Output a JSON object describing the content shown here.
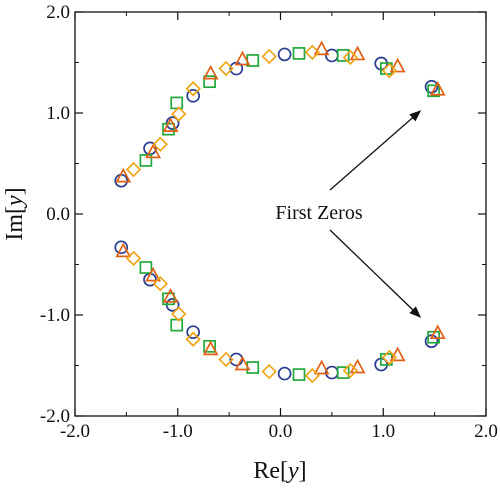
{
  "chart_data": {
    "type": "scatter",
    "xlim": [
      -2.0,
      2.0
    ],
    "ylim": [
      -2.0,
      2.0
    ],
    "grid": false,
    "x_ticks": [
      -2.0,
      -1.0,
      0.0,
      1.0,
      2.0
    ],
    "y_ticks": [
      -2.0,
      -1.0,
      0.0,
      1.0,
      2.0
    ],
    "x_tick_labels": [
      "-2.0",
      "-1.0",
      "0.0",
      "1.0",
      "2.0"
    ],
    "y_tick_labels": [
      "-2.0",
      "-1.0",
      "0.0",
      "1.0",
      "2.0"
    ],
    "xlabel": {
      "base": "Re[",
      "var": "y",
      "close": "]"
    },
    "ylabel": {
      "base": "Im[",
      "var": "y",
      "close": "]"
    },
    "annotation": {
      "text": "First Zeros",
      "anchor": [
        0.5,
        0.0
      ],
      "arrow_targets": [
        [
          1.36,
          1.02
        ],
        [
          1.36,
          -1.02
        ]
      ]
    },
    "series": [
      {
        "marker": "circle",
        "color": "#2b3d8f",
        "points": [
          [
            -1.55,
            0.33
          ],
          [
            -1.27,
            0.65
          ],
          [
            -1.05,
            0.9
          ],
          [
            -0.85,
            1.17
          ],
          [
            -0.43,
            1.44
          ],
          [
            0.04,
            1.58
          ],
          [
            0.5,
            1.57
          ],
          [
            0.98,
            1.49
          ],
          [
            1.47,
            1.26
          ],
          [
            -1.55,
            -0.33
          ],
          [
            -1.27,
            -0.65
          ],
          [
            -1.05,
            -0.9
          ],
          [
            -0.85,
            -1.17
          ],
          [
            -0.43,
            -1.44
          ],
          [
            0.04,
            -1.58
          ],
          [
            0.5,
            -1.57
          ],
          [
            0.98,
            -1.49
          ],
          [
            1.47,
            -1.26
          ]
        ]
      },
      {
        "marker": "square",
        "color": "#22a83a",
        "points": [
          [
            -1.31,
            0.53
          ],
          [
            -1.09,
            0.84
          ],
          [
            -1.01,
            1.1
          ],
          [
            -0.69,
            1.31
          ],
          [
            -0.27,
            1.52
          ],
          [
            0.18,
            1.59
          ],
          [
            0.61,
            1.57
          ],
          [
            1.03,
            1.44
          ],
          [
            1.49,
            1.22
          ],
          [
            -1.31,
            -0.53
          ],
          [
            -1.09,
            -0.84
          ],
          [
            -1.01,
            -1.1
          ],
          [
            -0.69,
            -1.31
          ],
          [
            -0.27,
            -1.52
          ],
          [
            0.18,
            -1.59
          ],
          [
            0.61,
            -1.57
          ],
          [
            1.03,
            -1.44
          ],
          [
            1.49,
            -1.22
          ]
        ]
      },
      {
        "marker": "triangle",
        "color": "#e06014",
        "points": [
          [
            -1.53,
            0.37
          ],
          [
            -1.24,
            0.61
          ],
          [
            -1.07,
            0.87
          ],
          [
            -0.68,
            1.39
          ],
          [
            -0.37,
            1.53
          ],
          [
            0.4,
            1.63
          ],
          [
            0.75,
            1.58
          ],
          [
            1.14,
            1.46
          ],
          [
            1.53,
            1.23
          ],
          [
            -1.53,
            -0.37
          ],
          [
            -1.24,
            -0.61
          ],
          [
            -1.07,
            -0.82
          ],
          [
            -0.68,
            -1.34
          ],
          [
            -0.37,
            -1.49
          ],
          [
            0.4,
            -1.53
          ],
          [
            0.75,
            -1.52
          ],
          [
            1.14,
            -1.4
          ],
          [
            1.53,
            -1.18
          ]
        ]
      },
      {
        "marker": "diamond",
        "color": "#f0a418",
        "points": [
          [
            -1.43,
            0.44
          ],
          [
            -1.17,
            0.69
          ],
          [
            -0.99,
            0.99
          ],
          [
            -0.85,
            1.24
          ],
          [
            -0.53,
            1.44
          ],
          [
            -0.11,
            1.56
          ],
          [
            0.31,
            1.6
          ],
          [
            0.68,
            1.55
          ],
          [
            1.06,
            1.42
          ],
          [
            -1.43,
            -0.44
          ],
          [
            -1.17,
            -0.69
          ],
          [
            -0.99,
            -0.99
          ],
          [
            -0.85,
            -1.24
          ],
          [
            -0.53,
            -1.44
          ],
          [
            -0.11,
            -1.56
          ],
          [
            0.31,
            -1.6
          ],
          [
            0.68,
            -1.55
          ],
          [
            1.06,
            -1.42
          ]
        ]
      }
    ]
  }
}
